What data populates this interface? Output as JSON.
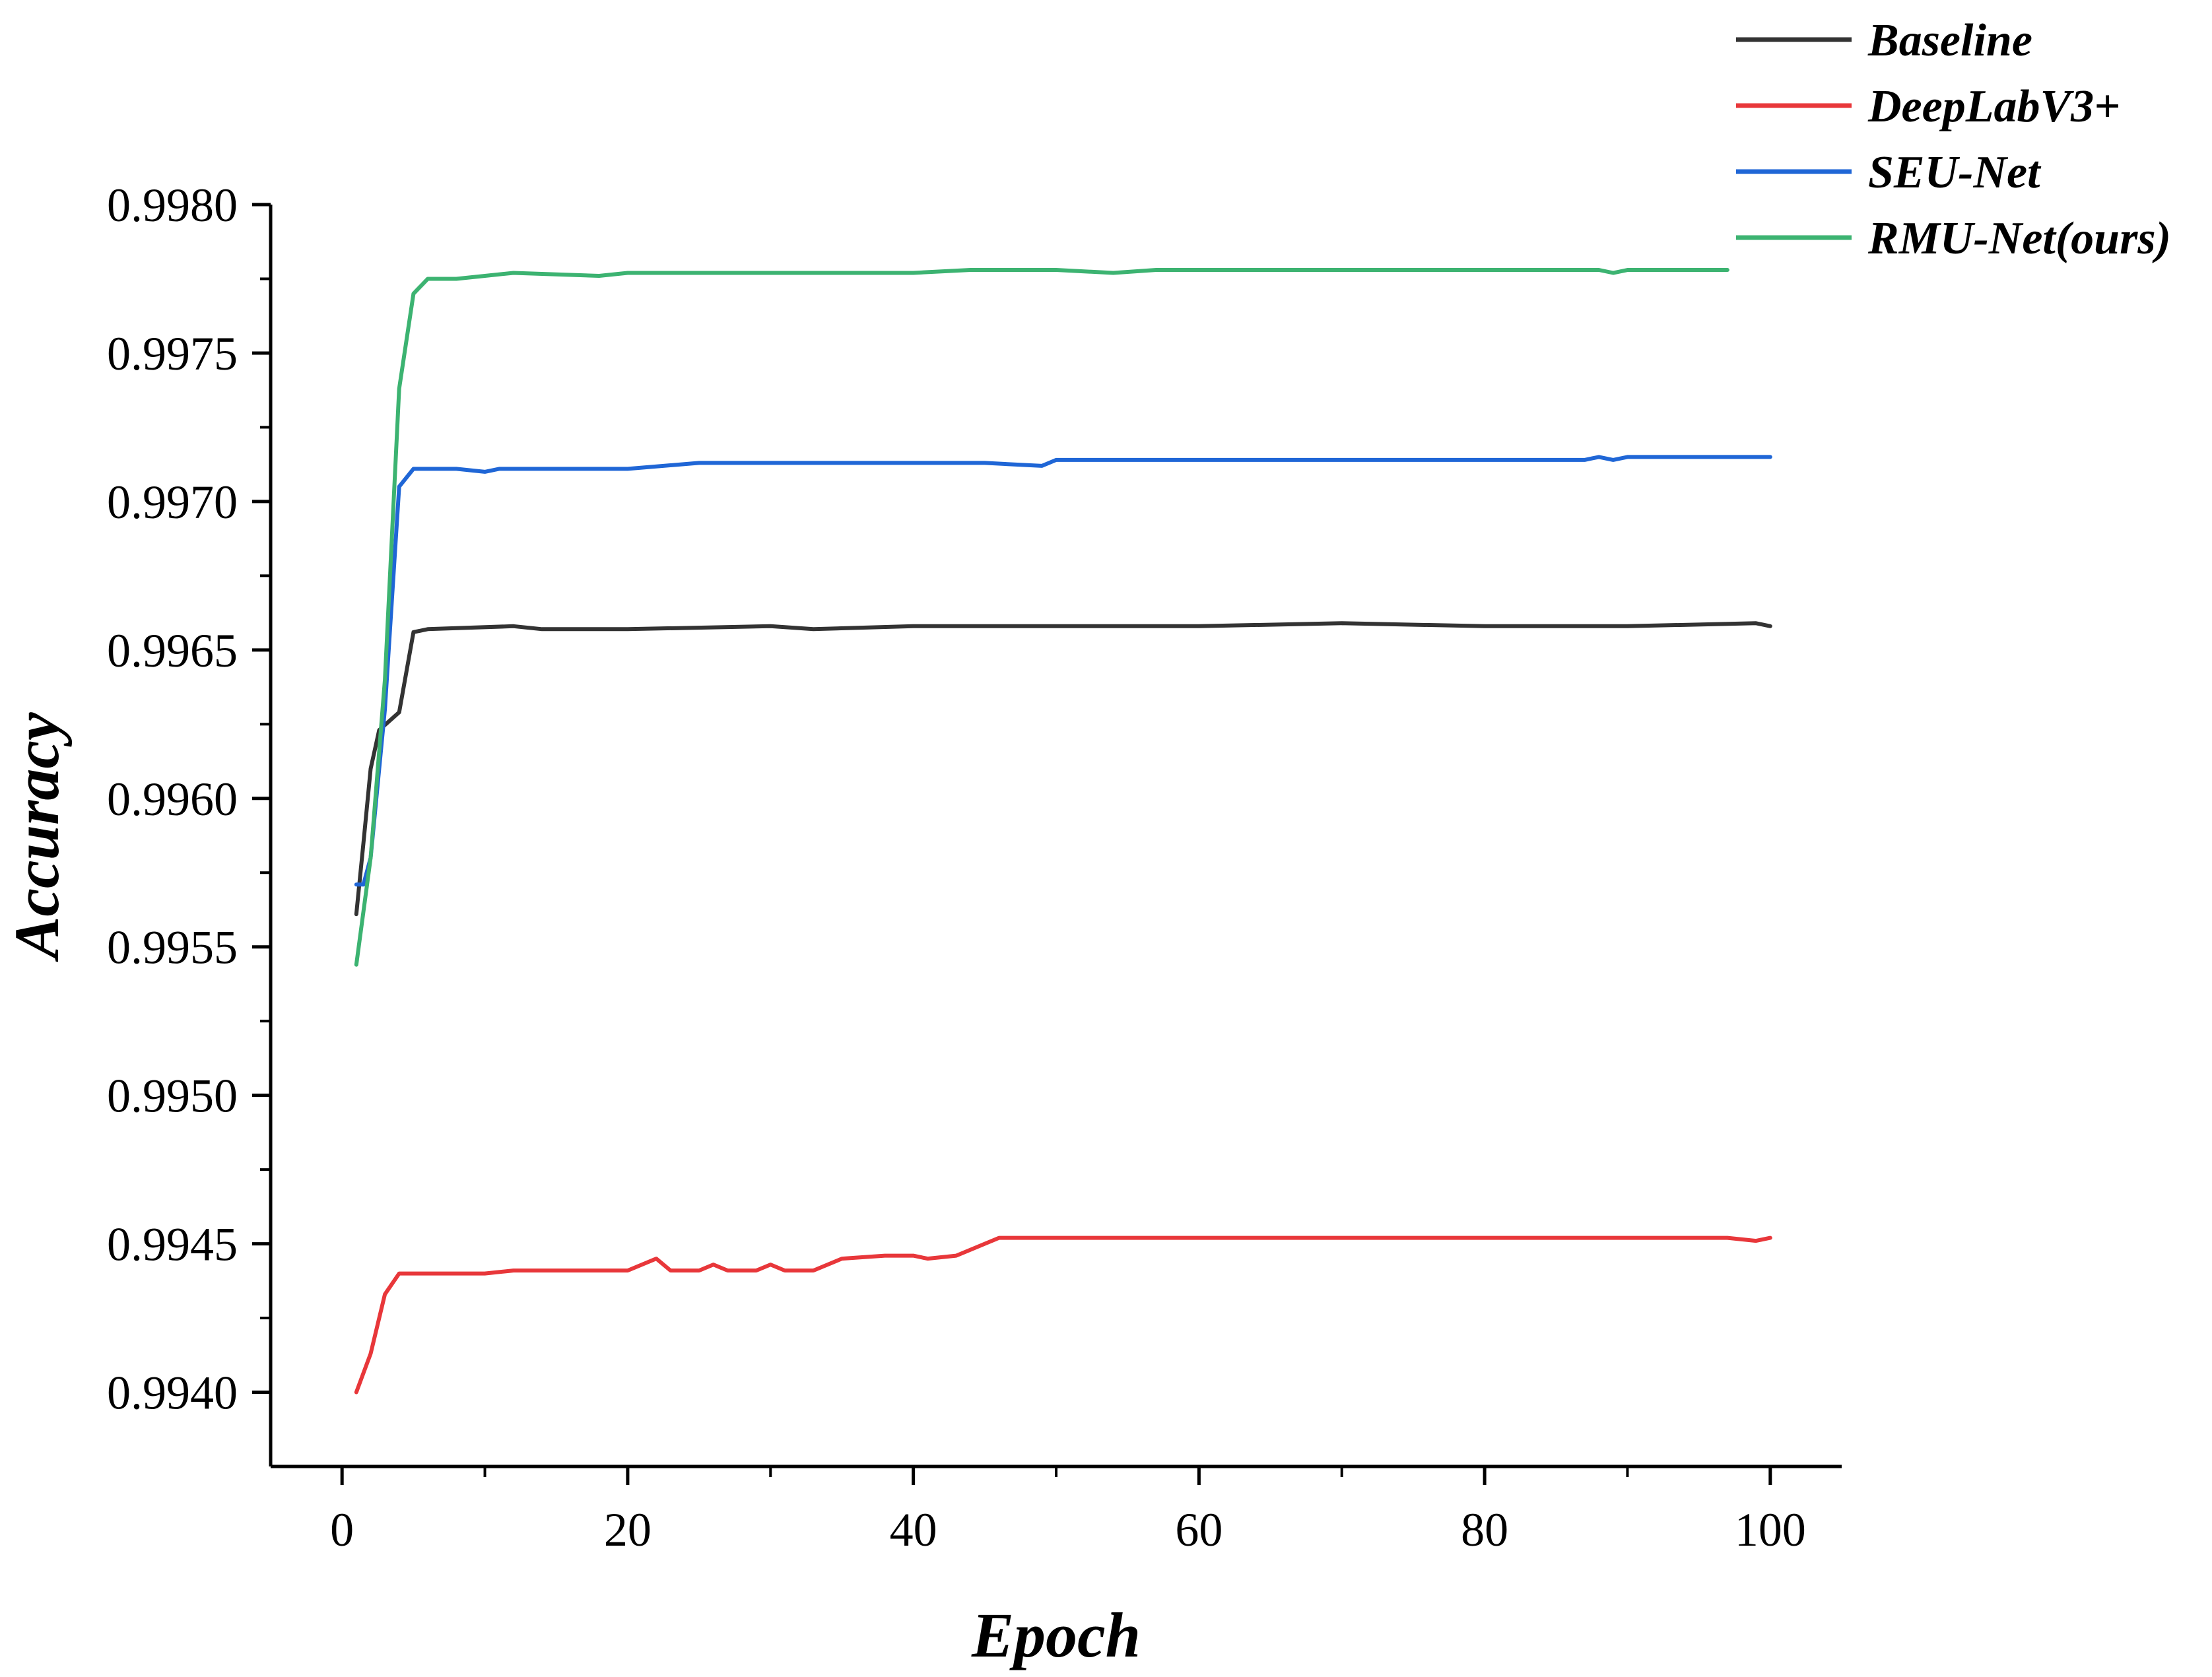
{
  "chart_data": {
    "type": "line",
    "title": "",
    "xlabel": "Epoch",
    "ylabel": "Accuracy",
    "xlim": [
      -5,
      105
    ],
    "ylim": [
      0.99375,
      0.998
    ],
    "xticks": [
      0,
      20,
      40,
      60,
      80,
      100
    ],
    "xtick_labels": [
      "0",
      "20",
      "40",
      "60",
      "80",
      "100"
    ],
    "yticks": [
      0.994,
      0.9945,
      0.995,
      0.9955,
      0.996,
      0.9965,
      0.997,
      0.9975,
      0.998
    ],
    "ytick_labels": [
      "0.9940",
      "0.9945",
      "0.9950",
      "0.9955",
      "0.9960",
      "0.9965",
      "0.9970",
      "0.9975",
      "0.9980"
    ],
    "grid": false,
    "legend_position": "top-right",
    "series": [
      {
        "name": "Baseline",
        "color": "#333333",
        "points": [
          [
            1,
            0.99561
          ],
          [
            1.5,
            0.99585
          ],
          [
            2,
            0.9961
          ],
          [
            2.6,
            0.99623
          ],
          [
            4,
            0.99629
          ],
          [
            5,
            0.99656
          ],
          [
            6,
            0.99657
          ],
          [
            12,
            0.99658
          ],
          [
            14,
            0.99657
          ],
          [
            20,
            0.99657
          ],
          [
            30,
            0.99658
          ],
          [
            33,
            0.99657
          ],
          [
            40,
            0.99658
          ],
          [
            50,
            0.99658
          ],
          [
            60,
            0.99658
          ],
          [
            70,
            0.99659
          ],
          [
            80,
            0.99658
          ],
          [
            90,
            0.99658
          ],
          [
            99,
            0.99659
          ],
          [
            100,
            0.99658
          ]
        ]
      },
      {
        "name": "DeepLabV3+",
        "color": "#e8373a",
        "points": [
          [
            1,
            0.994
          ],
          [
            2,
            0.99413
          ],
          [
            3,
            0.99433
          ],
          [
            4,
            0.9944
          ],
          [
            10,
            0.9944
          ],
          [
            12,
            0.99441
          ],
          [
            18,
            0.99441
          ],
          [
            20,
            0.99441
          ],
          [
            22,
            0.99445
          ],
          [
            23,
            0.99441
          ],
          [
            25,
            0.99441
          ],
          [
            26,
            0.99443
          ],
          [
            27,
            0.99441
          ],
          [
            29,
            0.99441
          ],
          [
            30,
            0.99443
          ],
          [
            31,
            0.99441
          ],
          [
            33,
            0.99441
          ],
          [
            35,
            0.99445
          ],
          [
            38,
            0.99446
          ],
          [
            40,
            0.99446
          ],
          [
            41,
            0.99445
          ],
          [
            43,
            0.99446
          ],
          [
            44,
            0.99448
          ],
          [
            45,
            0.9945
          ],
          [
            46,
            0.99452
          ],
          [
            60,
            0.99452
          ],
          [
            80,
            0.99452
          ],
          [
            97,
            0.99452
          ],
          [
            99,
            0.99451
          ],
          [
            100,
            0.99452
          ]
        ]
      },
      {
        "name": "SEU-Net",
        "color": "#1f66d6",
        "points": [
          [
            1,
            0.99571
          ],
          [
            1.5,
            0.99571
          ],
          [
            2,
            0.9958
          ],
          [
            3,
            0.9963
          ],
          [
            4,
            0.99705
          ],
          [
            5,
            0.99711
          ],
          [
            8,
            0.99711
          ],
          [
            10,
            0.9971
          ],
          [
            11,
            0.99711
          ],
          [
            20,
            0.99711
          ],
          [
            25,
            0.99713
          ],
          [
            30,
            0.99713
          ],
          [
            40,
            0.99713
          ],
          [
            45,
            0.99713
          ],
          [
            49,
            0.99712
          ],
          [
            50,
            0.99714
          ],
          [
            60,
            0.99714
          ],
          [
            70,
            0.99714
          ],
          [
            80,
            0.99714
          ],
          [
            87,
            0.99714
          ],
          [
            88,
            0.99715
          ],
          [
            89,
            0.99714
          ],
          [
            90,
            0.99715
          ],
          [
            100,
            0.99715
          ]
        ]
      },
      {
        "name": "RMU-Net(ours)",
        "color": "#3cb371",
        "points": [
          [
            1,
            0.99544
          ],
          [
            2,
            0.9958
          ],
          [
            3,
            0.9964
          ],
          [
            4,
            0.99738
          ],
          [
            5,
            0.9977
          ],
          [
            6,
            0.99775
          ],
          [
            8,
            0.99775
          ],
          [
            10,
            0.99776
          ],
          [
            12,
            0.99777
          ],
          [
            18,
            0.99776
          ],
          [
            20,
            0.99777
          ],
          [
            28,
            0.99777
          ],
          [
            30,
            0.99777
          ],
          [
            40,
            0.99777
          ],
          [
            44,
            0.99778
          ],
          [
            50,
            0.99778
          ],
          [
            54,
            0.99777
          ],
          [
            57,
            0.99778
          ],
          [
            60,
            0.99778
          ],
          [
            65,
            0.99778
          ],
          [
            70,
            0.99778
          ],
          [
            80,
            0.99778
          ],
          [
            88,
            0.99778
          ],
          [
            89,
            0.99777
          ],
          [
            90,
            0.99778
          ],
          [
            96,
            0.99778
          ],
          [
            97,
            0.99778
          ]
        ]
      }
    ]
  }
}
